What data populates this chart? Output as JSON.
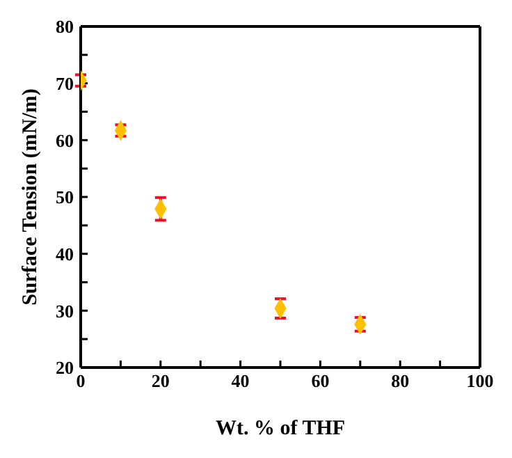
{
  "chart_data": {
    "type": "scatter",
    "xlabel": "Wt. % of THF",
    "ylabel": "Surface Tension (mN/m)",
    "x": [
      0,
      10,
      20,
      50,
      70
    ],
    "series": [
      {
        "color": "#ffc000",
        "values": [
          70.5,
          61.7,
          47.9,
          30.4,
          27.6
        ],
        "errors": [
          1,
          1,
          2,
          1.7,
          1.2
        ]
      }
    ],
    "xlim": [
      0,
      100
    ],
    "ylim": [
      20,
      80
    ],
    "xticks": [
      0,
      {
        "value": 10,
        "label": null
      },
      20,
      {
        "value": 30,
        "label": null
      },
      40,
      {
        "value": 50,
        "label": null
      },
      60,
      {
        "value": 70,
        "label": null
      },
      80,
      {
        "value": 90,
        "label": null
      },
      100
    ],
    "yticks": [
      20,
      {
        "value": 25,
        "label": null
      },
      30,
      {
        "value": 35,
        "label": null
      },
      40,
      {
        "value": 45,
        "label": null
      },
      50,
      {
        "value": 55,
        "label": null
      },
      60,
      {
        "value": 65,
        "label": null
      },
      70,
      {
        "value": 75,
        "label": null
      },
      80
    ],
    "grid": false,
    "legend": false,
    "marker": "diamond"
  }
}
